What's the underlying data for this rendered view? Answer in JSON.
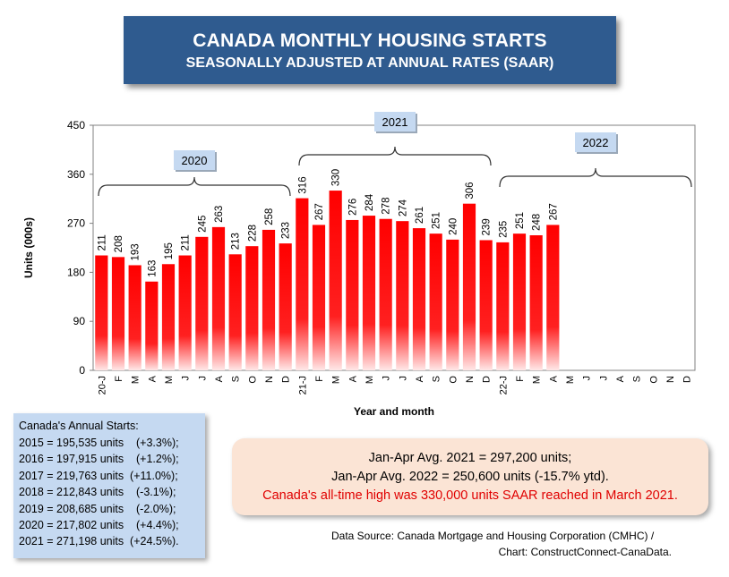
{
  "header": {
    "title": "CANADA MONTHLY HOUSING STARTS",
    "subtitle": "SEASONALLY ADJUSTED AT ANNUAL RATES (SAAR)"
  },
  "chart_data": {
    "type": "bar",
    "ylabel": "Units (000s)",
    "xlabel": "Year and month",
    "ylim": [
      0,
      450
    ],
    "yticks": [
      0,
      90,
      180,
      270,
      360,
      450
    ],
    "grid": false,
    "bar_color": "#ff0000",
    "categories": [
      "20-J",
      "F",
      "M",
      "A",
      "M",
      "J",
      "J",
      "A",
      "S",
      "O",
      "N",
      "D",
      "21-J",
      "F",
      "M",
      "A",
      "M",
      "J",
      "J",
      "A",
      "S",
      "O",
      "N",
      "D",
      "22-J",
      "F",
      "M",
      "A",
      "M",
      "J",
      "J",
      "A",
      "S",
      "O",
      "N",
      "D"
    ],
    "values": [
      211,
      208,
      193,
      163,
      195,
      211,
      245,
      263,
      213,
      228,
      258,
      233,
      316,
      267,
      330,
      276,
      284,
      278,
      274,
      261,
      251,
      240,
      306,
      239,
      235,
      251,
      248,
      267,
      null,
      null,
      null,
      null,
      null,
      null,
      null,
      null
    ],
    "year_groups": [
      {
        "label": "2020",
        "start": 0,
        "end": 11
      },
      {
        "label": "2021",
        "start": 12,
        "end": 23
      },
      {
        "label": "2022",
        "start": 24,
        "end": 35
      }
    ]
  },
  "annual": {
    "title": "Canada's Annual Starts:",
    "rows": [
      "2015 = 195,535 units    (+3.3%);",
      "2016 = 197,915 units    (+1.2%);",
      "2017 = 219,763 units  (+11.0%);",
      "2018 = 212,843 units    (-3.1%);",
      "2019 = 208,685 units    (-2.0%);",
      "2020 = 217,802 units    (+4.4%);",
      "2021 = 271,198 units  (+24.5%)."
    ]
  },
  "summary": {
    "line1": "Jan-Apr Avg. 2021 = 297,200 units;",
    "line2": "Jan-Apr Avg. 2022 = 250,600 units (-15.7% ytd).",
    "line3": "Canada's all-time high was 330,000 units SAAR reached in March 2021."
  },
  "source": {
    "line1": "Data Source:  Canada Mortgage and Housing Corporation (CMHC) /",
    "line2": "Chart: ConstructConnect-CanaData."
  }
}
